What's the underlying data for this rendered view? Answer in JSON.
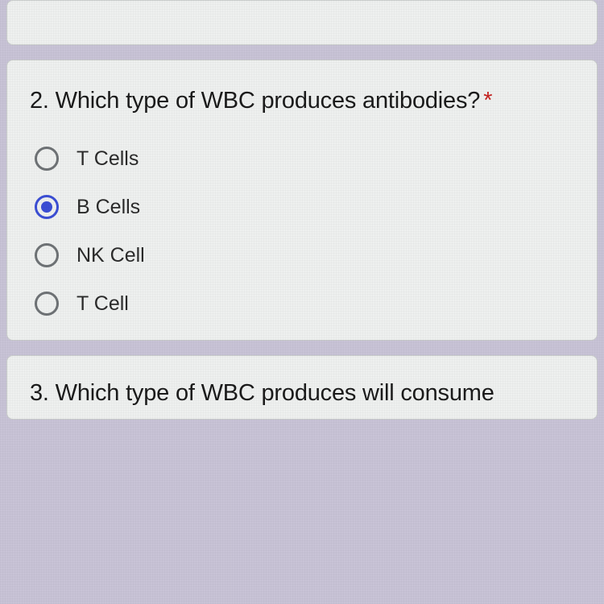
{
  "colors": {
    "page_bg": "#c8c3d6",
    "card_bg": "#eef0ef",
    "card_border": "#c9cccb",
    "text": "#1b1b1b",
    "label_text": "#2b2b2b",
    "radio_border": "#6e7275",
    "radio_selected": "#3b4ed4",
    "asterisk": "#c5221f"
  },
  "typography": {
    "question_fontsize": 29,
    "label_fontsize": 25,
    "font_family": "Arial"
  },
  "question2": {
    "number_text": "2. Which type of WBC produces antibodies?",
    "required_marker": "*",
    "selected_index": 1,
    "options": [
      {
        "label": "T Cells"
      },
      {
        "label": "B Cells"
      },
      {
        "label": "NK Cell"
      },
      {
        "label": "T Cell"
      }
    ]
  },
  "question3": {
    "partial_text": "3. Which type of WBC produces will consume"
  }
}
